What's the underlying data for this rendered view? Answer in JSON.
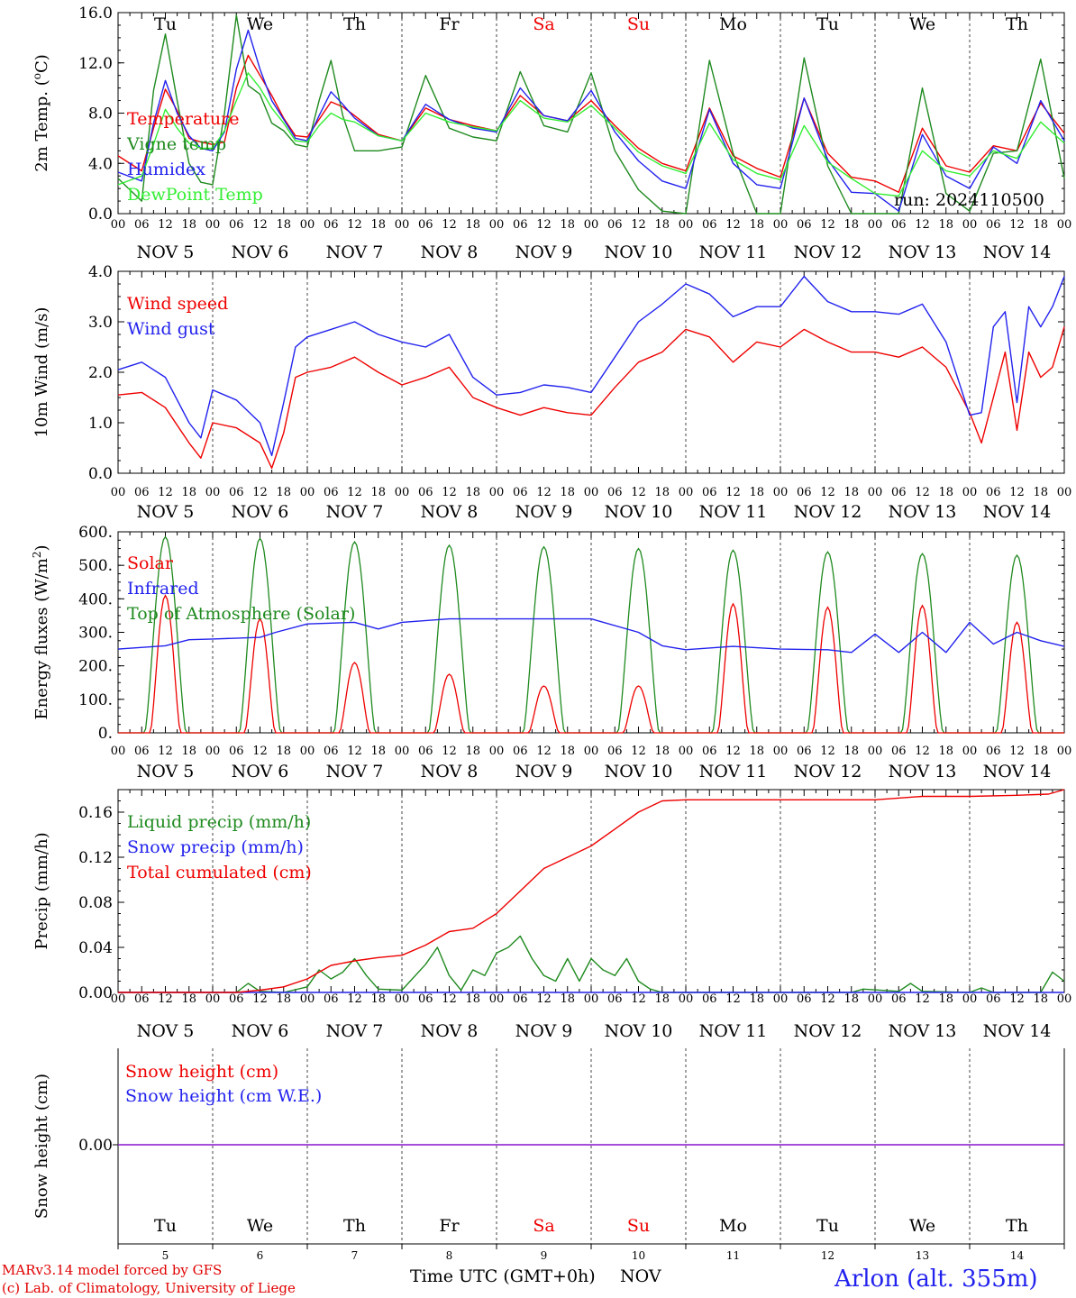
{
  "days": {
    "names": [
      "Tu",
      "We",
      "Th",
      "Fr",
      "Sa",
      "Su",
      "Mo",
      "Tu",
      "We",
      "Th"
    ],
    "dates": [
      "NOV  5",
      "NOV  6",
      "NOV  7",
      "NOV  8",
      "NOV  9",
      "NOV 10",
      "NOV 11",
      "NOV 12",
      "NOV 13",
      "NOV 14"
    ],
    "day_numbers": [
      "5",
      "6",
      "7",
      "8",
      "9",
      "10",
      "11",
      "12",
      "13",
      "14"
    ],
    "weekend_color": "#ee0000",
    "weekday_color": "#000000",
    "weekend_index": [
      4,
      5
    ]
  },
  "hour_ticks": [
    "00",
    "06",
    "12",
    "18"
  ],
  "hour_tick_final": "00",
  "footer": {
    "model_line": "MARv3.14 model forced by GFS",
    "lab_line": "(c) Lab. of Climatology, University of Liege",
    "xlabel": "Time UTC (GMT+0h)",
    "month": "NOV",
    "station": "Arlon (alt. 355m)"
  },
  "colors": {
    "red": "#ee0000",
    "dark_green": "#1f8a1f",
    "blue": "#2222ee",
    "light_green": "#33ee33",
    "purple": "#8a2be2"
  },
  "chart_data": [
    {
      "id": "temperature",
      "type": "line",
      "ylabel": "2m Temp. (oC)",
      "ylim": [
        0,
        16
      ],
      "yticks": [
        "0.0",
        "4.0",
        "8.0",
        "12.0",
        "16.0"
      ],
      "annotation": "run: 2024110500",
      "x_unit": "hours since NOV 5 00 UTC, 0-240",
      "series": [
        {
          "name": "Temperature",
          "color": "#ee0000",
          "x": [
            0,
            6,
            9,
            12,
            15,
            18,
            21,
            24,
            27,
            30,
            33,
            36,
            39,
            42,
            45,
            48,
            51,
            54,
            57,
            60,
            66,
            72,
            78,
            84,
            90,
            96,
            102,
            108,
            114,
            120,
            126,
            132,
            138,
            144,
            150,
            156,
            162,
            168,
            174,
            180,
            186,
            192,
            198,
            204,
            210,
            216,
            222,
            228,
            234,
            240
          ],
          "y": [
            4.6,
            3.4,
            6.8,
            9.9,
            8.2,
            6.0,
            5.7,
            5.5,
            5.7,
            10.0,
            12.6,
            11.0,
            9.4,
            7.6,
            6.2,
            6.1,
            7.5,
            8.9,
            8.5,
            7.8,
            6.3,
            5.8,
            8.4,
            7.5,
            7.0,
            6.6,
            9.4,
            7.8,
            7.4,
            9.0,
            7.0,
            5.2,
            4.0,
            3.4,
            8.4,
            4.6,
            3.6,
            2.9,
            9.2,
            4.8,
            2.9,
            2.6,
            1.7,
            6.8,
            3.8,
            3.3,
            5.4,
            5.0,
            8.8,
            6.4
          ]
        },
        {
          "name": "Vigne temp",
          "color": "#1f8a1f",
          "x": [
            0,
            6,
            9,
            12,
            15,
            18,
            21,
            24,
            27,
            30,
            33,
            36,
            39,
            42,
            45,
            48,
            51,
            54,
            57,
            60,
            66,
            72,
            78,
            84,
            90,
            96,
            102,
            108,
            114,
            120,
            126,
            132,
            138,
            144,
            150,
            156,
            162,
            168,
            174,
            180,
            186,
            192,
            198,
            204,
            210,
            216,
            222,
            228,
            234,
            240
          ],
          "y": [
            2.8,
            1.0,
            9.8,
            14.3,
            9.0,
            4.0,
            2.5,
            2.3,
            8.0,
            15.8,
            10.2,
            9.5,
            7.2,
            6.6,
            5.5,
            5.3,
            9.0,
            12.2,
            7.8,
            5.0,
            5.0,
            5.3,
            11.0,
            6.8,
            6.1,
            5.8,
            11.3,
            7.0,
            6.5,
            11.2,
            5.0,
            1.9,
            0.2,
            0.0,
            12.2,
            4.8,
            0.0,
            0.0,
            12.4,
            3.8,
            0.0,
            0.0,
            0.0,
            10.0,
            1.6,
            0.2,
            4.8,
            5.0,
            12.3,
            2.8
          ]
        },
        {
          "name": "Humidex",
          "color": "#2222ee",
          "x": [
            0,
            6,
            9,
            12,
            15,
            18,
            21,
            24,
            27,
            30,
            33,
            36,
            39,
            42,
            45,
            48,
            51,
            54,
            57,
            60,
            66,
            72,
            78,
            84,
            90,
            96,
            102,
            108,
            114,
            120,
            126,
            132,
            138,
            144,
            150,
            156,
            162,
            168,
            174,
            180,
            186,
            192,
            198,
            204,
            210,
            216,
            222,
            228,
            234,
            240
          ],
          "y": [
            3.3,
            2.6,
            7.2,
            10.6,
            8.0,
            6.2,
            5.2,
            5.0,
            6.5,
            11.5,
            14.6,
            11.5,
            9.0,
            7.5,
            6.0,
            5.8,
            7.8,
            9.7,
            8.7,
            7.6,
            6.2,
            5.8,
            8.7,
            7.5,
            6.8,
            6.5,
            10.0,
            7.8,
            7.4,
            9.8,
            6.5,
            4.2,
            2.6,
            2.0,
            8.3,
            4.0,
            2.3,
            2.0,
            9.2,
            4.3,
            1.7,
            1.6,
            0.2,
            6.3,
            3.0,
            2.0,
            5.3,
            4.0,
            9.0,
            5.8
          ]
        },
        {
          "name": "DewPoint Temp",
          "color": "#33ee33",
          "x": [
            0,
            6,
            9,
            12,
            15,
            18,
            21,
            24,
            27,
            30,
            33,
            36,
            39,
            42,
            45,
            48,
            51,
            54,
            57,
            60,
            66,
            72,
            78,
            84,
            90,
            96,
            102,
            108,
            114,
            120,
            126,
            132,
            138,
            144,
            150,
            156,
            162,
            168,
            174,
            180,
            186,
            192,
            198,
            204,
            210,
            216,
            222,
            228,
            234,
            240
          ],
          "y": [
            2.3,
            3.0,
            5.5,
            8.3,
            6.8,
            5.6,
            5.2,
            5.2,
            6.6,
            9.0,
            11.2,
            10.0,
            8.4,
            7.2,
            5.8,
            5.7,
            7.0,
            8.0,
            7.5,
            7.3,
            6.2,
            5.8,
            8.0,
            7.3,
            6.9,
            6.6,
            9.0,
            7.6,
            7.3,
            8.6,
            6.8,
            4.9,
            3.8,
            3.2,
            7.2,
            4.3,
            3.2,
            2.7,
            7.0,
            4.1,
            2.8,
            1.6,
            1.4,
            5.0,
            3.4,
            3.0,
            5.0,
            4.4,
            7.3,
            5.6
          ]
        }
      ]
    },
    {
      "id": "wind",
      "type": "line",
      "ylabel": "10m Wind (m/s)",
      "ylim": [
        0,
        4
      ],
      "yticks": [
        "0.0",
        "1.0",
        "2.0",
        "3.0",
        "4.0"
      ],
      "series": [
        {
          "name": "Wind speed",
          "color": "#ee0000",
          "x": [
            0,
            6,
            12,
            18,
            21,
            24,
            30,
            36,
            39,
            42,
            45,
            48,
            54,
            60,
            66,
            72,
            78,
            84,
            90,
            96,
            102,
            108,
            114,
            120,
            126,
            132,
            138,
            144,
            150,
            156,
            162,
            168,
            174,
            180,
            186,
            192,
            198,
            204,
            210,
            216,
            219,
            222,
            225,
            228,
            231,
            234,
            237,
            240
          ],
          "y": [
            1.55,
            1.6,
            1.3,
            0.6,
            0.3,
            1.0,
            0.9,
            0.6,
            0.1,
            0.8,
            1.9,
            2.0,
            2.1,
            2.3,
            2.0,
            1.75,
            1.9,
            2.1,
            1.5,
            1.3,
            1.15,
            1.3,
            1.2,
            1.15,
            1.7,
            2.2,
            2.4,
            2.85,
            2.7,
            2.2,
            2.6,
            2.5,
            2.85,
            2.6,
            2.4,
            2.4,
            2.3,
            2.5,
            2.1,
            1.2,
            0.6,
            1.5,
            2.4,
            0.85,
            2.4,
            1.9,
            2.1,
            2.9
          ]
        },
        {
          "name": "Wind gust",
          "color": "#2222ee",
          "x": [
            0,
            6,
            12,
            18,
            21,
            24,
            30,
            36,
            39,
            42,
            45,
            48,
            54,
            60,
            66,
            72,
            78,
            84,
            90,
            96,
            102,
            108,
            114,
            120,
            126,
            132,
            138,
            144,
            150,
            156,
            162,
            168,
            174,
            180,
            186,
            192,
            198,
            204,
            210,
            216,
            219,
            222,
            225,
            228,
            231,
            234,
            237,
            240
          ],
          "y": [
            2.05,
            2.2,
            1.9,
            1.0,
            0.7,
            1.65,
            1.45,
            1.0,
            0.35,
            1.4,
            2.5,
            2.7,
            2.85,
            3.0,
            2.75,
            2.6,
            2.5,
            2.75,
            1.9,
            1.55,
            1.6,
            1.75,
            1.7,
            1.6,
            2.3,
            3.0,
            3.35,
            3.75,
            3.55,
            3.1,
            3.3,
            3.3,
            3.9,
            3.4,
            3.2,
            3.2,
            3.15,
            3.35,
            2.6,
            1.15,
            1.2,
            2.9,
            3.2,
            1.4,
            3.3,
            2.9,
            3.3,
            3.9
          ]
        }
      ]
    },
    {
      "id": "energy",
      "type": "line",
      "ylabel": "Energy fluxes (W/m2)",
      "ylim": [
        0,
        600
      ],
      "yticks": [
        "0.",
        "100.",
        "200.",
        "300.",
        "400.",
        "500.",
        "600."
      ],
      "series": [
        {
          "name": "Solar",
          "color": "#ee0000",
          "peaks": [
            410,
            340,
            210,
            175,
            140,
            140,
            385,
            375,
            380,
            330
          ]
        },
        {
          "name": "Infrared",
          "color": "#2222ee",
          "x": [
            0,
            12,
            18,
            24,
            36,
            40,
            48,
            60,
            66,
            72,
            84,
            96,
            108,
            120,
            132,
            138,
            144,
            156,
            168,
            180,
            186,
            192,
            198,
            204,
            210,
            216,
            222,
            228,
            234,
            240
          ],
          "y": [
            250,
            260,
            278,
            280,
            285,
            300,
            325,
            330,
            310,
            330,
            340,
            340,
            340,
            340,
            300,
            260,
            248,
            258,
            250,
            248,
            240,
            295,
            240,
            300,
            240,
            330,
            265,
            300,
            275,
            258
          ]
        },
        {
          "name": "Top of Atmosphere (Solar)",
          "color": "#1f8a1f",
          "peaks": [
            585,
            580,
            570,
            560,
            555,
            550,
            545,
            540,
            535,
            530
          ]
        }
      ]
    },
    {
      "id": "precip",
      "type": "line",
      "ylabel": "Precip (mm/h)",
      "ylim": [
        0,
        0.18
      ],
      "yticks": [
        "0.00",
        "0.04",
        "0.08",
        "0.12",
        "0.16"
      ],
      "series": [
        {
          "name": "Liquid precip (mm/h)",
          "color": "#1f8a1f",
          "x": [
            0,
            30,
            33,
            36,
            42,
            48,
            51,
            54,
            57,
            60,
            63,
            66,
            72,
            78,
            81,
            84,
            87,
            90,
            93,
            96,
            99,
            102,
            105,
            108,
            111,
            114,
            117,
            120,
            123,
            126,
            129,
            132,
            135,
            138,
            150,
            186,
            189,
            198,
            201,
            204,
            216,
            219,
            222,
            234,
            237,
            240
          ],
          "y": [
            0,
            0,
            0.008,
            0.001,
            0,
            0.005,
            0.02,
            0.012,
            0.018,
            0.03,
            0.015,
            0.003,
            0.002,
            0.025,
            0.04,
            0.015,
            0.002,
            0.02,
            0.015,
            0.035,
            0.04,
            0.05,
            0.03,
            0.015,
            0.01,
            0.03,
            0.01,
            0.03,
            0.02,
            0.015,
            0.03,
            0.01,
            0.003,
            0.0,
            0,
            0,
            0.003,
            0.001,
            0.008,
            0.001,
            0,
            0.004,
            0,
            0,
            0.018,
            0.01
          ]
        },
        {
          "name": "Snow precip (mm/h)",
          "color": "#2222ee",
          "x": [
            0,
            240
          ],
          "y": [
            0,
            0
          ]
        },
        {
          "name": "Total cumulated (cm)",
          "color": "#ee0000",
          "x": [
            0,
            30,
            36,
            42,
            48,
            54,
            60,
            66,
            72,
            78,
            84,
            90,
            96,
            102,
            108,
            114,
            120,
            126,
            132,
            138,
            144,
            168,
            192,
            204,
            216,
            228,
            236,
            240
          ],
          "y": [
            0,
            0,
            0.002,
            0.005,
            0.012,
            0.024,
            0.028,
            0.031,
            0.033,
            0.042,
            0.054,
            0.057,
            0.07,
            0.09,
            0.11,
            0.12,
            0.13,
            0.145,
            0.16,
            0.17,
            0.171,
            0.171,
            0.171,
            0.174,
            0.174,
            0.175,
            0.176,
            0.18
          ]
        }
      ]
    },
    {
      "id": "snow",
      "type": "line",
      "ylabel": "Snow height (cm)",
      "ytick": "0.00",
      "series": [
        {
          "name": "Snow height (cm)",
          "color": "#ee0000",
          "x": [
            0,
            240
          ],
          "y": [
            0,
            0
          ]
        },
        {
          "name": "Snow height (cm W.E.)",
          "color": "#2222ee",
          "x": [
            0,
            240
          ],
          "y": [
            0,
            0
          ]
        }
      ]
    }
  ]
}
